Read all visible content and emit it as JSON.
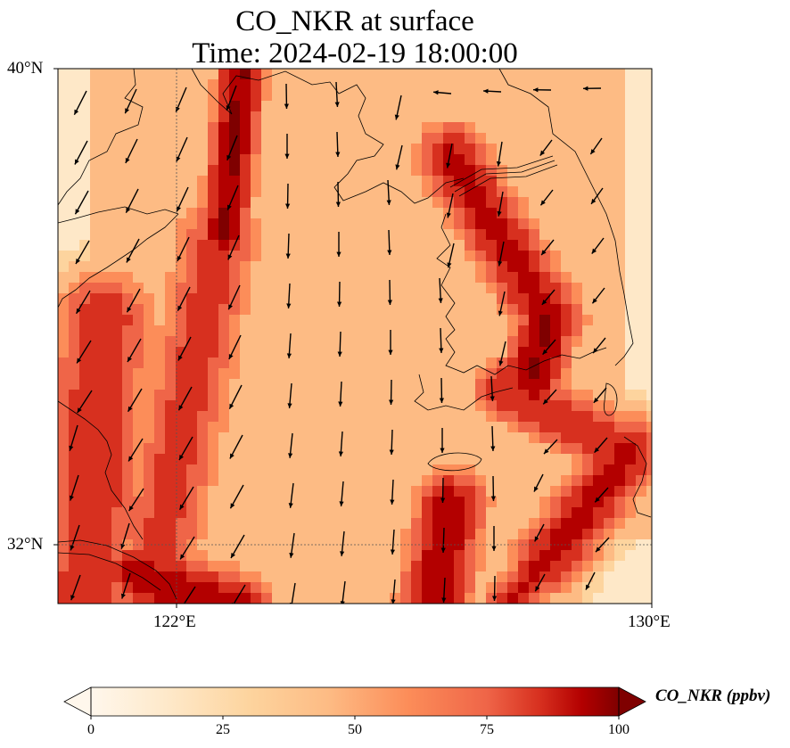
{
  "title": {
    "line1": "CO_NKR at surface",
    "line2": "Time: 2024-02-19 18:00:00"
  },
  "map": {
    "lon_range": [
      120,
      130
    ],
    "lat_range": [
      31,
      40
    ],
    "lat_ticks": [
      "40°N",
      "32°N"
    ],
    "lon_ticks": [
      "122°E",
      "130°E"
    ],
    "gridlines": "dotted at 122°E and 32°N",
    "field": "CO_NKR concentration shaded with OrRd colormap, wind vectors overlaid",
    "colors": {
      "low": "#fff7ec",
      "mid": "#fc8d59",
      "high": "#7f0000"
    }
  },
  "colorbar": {
    "label": "CO_NKR (ppbv)",
    "ticks": [
      "0",
      "25",
      "50",
      "75",
      "100"
    ],
    "min": 0,
    "max": 100,
    "extend": "both"
  }
}
